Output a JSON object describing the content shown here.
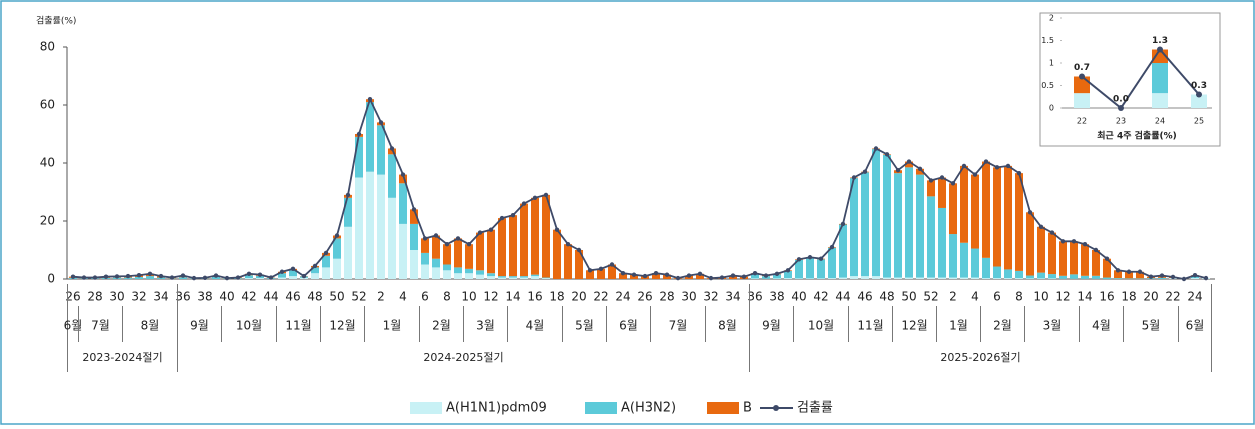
{
  "chart_data": [
    {
      "type": "bar",
      "stacked": true,
      "ylabel": "검출률(%)",
      "categories": [
        "26",
        null,
        "28",
        null,
        "30",
        null,
        "32",
        null,
        "34",
        null,
        "36",
        null,
        "38",
        null,
        "40",
        null,
        "42",
        null,
        "44",
        null,
        "46",
        null,
        "48",
        null,
        "50",
        null,
        "52",
        null,
        "2",
        null,
        "4",
        null,
        "6",
        null,
        "8",
        null,
        "10",
        null,
        "12",
        null,
        "14",
        null,
        "16",
        null,
        "18",
        null,
        "20",
        null,
        "22",
        null,
        "24",
        null,
        "26",
        null,
        "28",
        null,
        "30",
        null,
        "32",
        null,
        "34",
        null,
        "36",
        null,
        "38",
        null,
        "40",
        null,
        "42",
        null,
        "44",
        null,
        "46",
        null,
        "48",
        null,
        "50",
        null,
        "52",
        null,
        "2",
        null,
        "4",
        null,
        "6",
        null,
        "8",
        null,
        "10",
        null,
        "12",
        null,
        "14",
        null,
        "16",
        null,
        "18",
        null,
        "20",
        null,
        "22",
        null,
        "24",
        null
      ],
      "series": [
        {
          "name": "A(H1N1)pdm09",
          "color": "#c8f1f5",
          "values": [
            0,
            0,
            0,
            0,
            0,
            0,
            0,
            0,
            0,
            0,
            0,
            0,
            0,
            0,
            0,
            0,
            0.3,
            0.3,
            0.1,
            0.5,
            1,
            0.4,
            2,
            4,
            7,
            18,
            35,
            37,
            36,
            28,
            19,
            10,
            5,
            4,
            3,
            2,
            2,
            1.5,
            1,
            0.5,
            0.5,
            0.5,
            1,
            0.3,
            0,
            0,
            0,
            0,
            0,
            0,
            0,
            0,
            0,
            0,
            0,
            0,
            0,
            0,
            0,
            0,
            0,
            0,
            0.2,
            0.1,
            0.2,
            0.3,
            0.2,
            0.2,
            0.2,
            0.3,
            0.5,
            1,
            1,
            1,
            0.5,
            0.5,
            0.5,
            0.5,
            0.5,
            0.5,
            0.5,
            0.5,
            0.5,
            0.3,
            0.3,
            0.3,
            0.3,
            0.2,
            0.2,
            0.2,
            0.1,
            0.1,
            0.1,
            0.1,
            0,
            0,
            0,
            0,
            0,
            0,
            0.33,
            0,
            0.33,
            0.3
          ]
        },
        {
          "name": "A(H3N2)",
          "color": "#5ccad9",
          "values": [
            0.4,
            0.2,
            0.3,
            0.4,
            0.5,
            0.5,
            0.7,
            1.0,
            0.5,
            0.2,
            0.6,
            0.2,
            0.2,
            0.7,
            0.2,
            0.3,
            1.0,
            0.8,
            0.3,
            1.5,
            2,
            0.5,
            2,
            4,
            7,
            10,
            14,
            24,
            17,
            15,
            14,
            9,
            4,
            3,
            2,
            2,
            1.5,
            1.5,
            1,
            0.5,
            0.5,
            0.5,
            0.5,
            0.2,
            0,
            0,
            0,
            0,
            0,
            0,
            0,
            0,
            0,
            0,
            0,
            0,
            0,
            0,
            0,
            0,
            0,
            0,
            1.5,
            0.9,
            1.4,
            2.5,
            6.4,
            7.1,
            6.6,
            10.5,
            18.3,
            33.8,
            35.8,
            43.8,
            42.3,
            36,
            38,
            35.5,
            28,
            24,
            15,
            12,
            10,
            7,
            4,
            3,
            2.5,
            1,
            2,
            1.5,
            1,
            1.5,
            1,
            1,
            0.5,
            0.3,
            0.2,
            0.2,
            0.3,
            0.4,
            0,
            0,
            0.67,
            0
          ]
        },
        {
          "name": "B",
          "color": "#e8690f",
          "values": [
            0.4,
            0.3,
            0.2,
            0.4,
            0.4,
            0.5,
            0.6,
            0.8,
            0.5,
            0.3,
            0.6,
            0.1,
            0.2,
            0.5,
            0.1,
            0.2,
            0.5,
            0.4,
            0.1,
            0.5,
            0.5,
            0.1,
            0.5,
            1,
            1,
            1,
            1,
            1,
            1,
            2,
            3,
            5,
            5,
            8,
            7,
            10,
            8.5,
            13,
            15,
            20,
            21,
            25,
            26.5,
            28.5,
            17,
            12,
            10,
            3,
            3.5,
            5,
            2,
            1.5,
            1,
            2,
            1.5,
            0.3,
            1.2,
            1.8,
            0.3,
            0.5,
            1.2,
            0.8,
            0.3,
            0.2,
            0.2,
            0.2,
            0.2,
            0.2,
            0.2,
            0.2,
            0.2,
            0.2,
            0.2,
            0.2,
            0.2,
            1,
            2,
            2,
            5.5,
            10.5,
            17.5,
            26.5,
            25.5,
            33.2,
            34.2,
            35.7,
            33.7,
            21.8,
            15.8,
            14.3,
            11.9,
            11.4,
            10.9,
            8.9,
            6.5,
            2.7,
            2.3,
            2.3,
            0.5,
            0.8,
            0.37,
            0,
            0.3,
            0
          ]
        },
        {
          "name": "검출률",
          "type": "line",
          "color": "#3e4a68",
          "values": [
            0.8,
            0.5,
            0.5,
            0.8,
            0.9,
            1.0,
            1.3,
            1.8,
            1.0,
            0.5,
            1.2,
            0.3,
            0.4,
            1.2,
            0.3,
            0.5,
            1.8,
            1.5,
            0.5,
            2.5,
            3.5,
            1.0,
            4.5,
            9,
            15,
            29,
            50,
            62,
            54,
            45,
            36,
            24,
            14,
            15,
            12,
            14,
            12,
            16,
            17,
            21,
            22,
            26,
            28,
            29,
            17,
            12,
            10,
            3,
            3.5,
            5,
            2,
            1.5,
            1,
            2,
            1.5,
            0.3,
            1.2,
            1.8,
            0.3,
            0.5,
            1.2,
            0.8,
            2,
            1.2,
            1.8,
            3,
            6.8,
            7.5,
            7,
            11,
            19,
            35,
            37,
            45,
            43,
            37.5,
            40.5,
            38,
            34,
            35,
            33,
            39,
            36,
            40.5,
            38.5,
            39,
            36.5,
            23,
            18,
            16,
            13,
            13,
            12,
            10,
            7,
            3,
            2.5,
            2.5,
            0.8,
            1.2,
            0.7,
            0,
            1.3,
            0.3
          ]
        }
      ],
      "ylim": [
        0,
        80
      ],
      "yticks": [
        0,
        20,
        40,
        60,
        80
      ],
      "months": [
        "6월",
        "7월",
        "8월",
        "9월",
        "10월",
        "11월",
        "12월",
        "1월",
        "2월",
        "3월",
        "4월",
        "5월",
        "6월",
        "7월",
        "8월",
        "9월",
        "10월",
        "11월",
        "12월",
        "1월",
        "2월",
        "3월",
        "4월",
        "5월",
        "6월"
      ],
      "seasons": [
        "2023-2024절기",
        "2024-2025절기",
        "2025-2026절기"
      ]
    },
    {
      "type": "bar",
      "stacked": true,
      "title": "최근 4주 검출률(%)",
      "categories": [
        "22",
        "23",
        "24",
        "25"
      ],
      "series": [
        {
          "name": "A(H1N1)pdm09",
          "color": "#c8f1f5",
          "values": [
            0.33,
            0,
            0.33,
            0.3
          ]
        },
        {
          "name": "A(H3N2)",
          "color": "#5ccad9",
          "values": [
            0,
            0,
            0.67,
            0
          ]
        },
        {
          "name": "B",
          "color": "#e8690f",
          "values": [
            0.37,
            0,
            0.3,
            0
          ]
        },
        {
          "name": "검출률",
          "type": "line",
          "color": "#3e4a68",
          "values": [
            0.7,
            0,
            1.3,
            0.3
          ],
          "value_labels": [
            "0.7",
            "0.0",
            "1.3",
            "0.3"
          ]
        }
      ],
      "ylim": [
        0,
        2
      ],
      "yticks": [
        0,
        0.5,
        1,
        1.5,
        2
      ]
    }
  ]
}
